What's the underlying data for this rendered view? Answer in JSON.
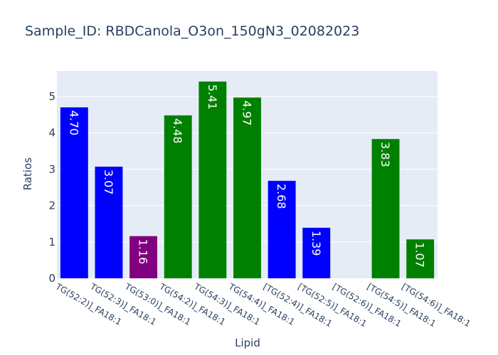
{
  "chart_data": {
    "type": "bar",
    "title": "Sample_ID: RBDCanola_O3on_150gN3_02082023",
    "xlabel": "Lipid",
    "ylabel": "Ratios",
    "ylim": [
      0,
      5.7
    ],
    "yticks": [
      0,
      1,
      2,
      3,
      4,
      5
    ],
    "grid": true,
    "categories": [
      "TG(52:2)]_FA18:1",
      "TG(52:3)]_FA18:1",
      "TG(53:0)]_FA18:1",
      "TG(54:2)]_FA18:1",
      "TG(54:3)]_FA18:1",
      "TG(54:4)]_FA18:1",
      "[TG(52:4)]_FA18:1",
      "[TG(52:5)]_FA18:1",
      "[TG(52:6)]_FA18:1",
      "[TG(54:5)]_FA18:1",
      "[TG(54:6)]_FA18:1"
    ],
    "values": [
      4.7,
      3.07,
      1.16,
      4.48,
      5.41,
      4.97,
      2.68,
      1.39,
      null,
      3.83,
      1.07
    ],
    "labels": [
      "4.70",
      "3.07",
      "1.16",
      "4.48",
      "5.41",
      "4.97",
      "2.68",
      "1.39",
      "",
      "3.83",
      "1.07"
    ],
    "colors": [
      "#0000ff",
      "#0000ff",
      "#800080",
      "#008000",
      "#008000",
      "#008000",
      "#0000ff",
      "#0000ff",
      "#008000",
      "#008000",
      "#008000"
    ],
    "plot_bg": "#e5ecf6",
    "grid_color": "#ffffff",
    "text_color": "#2a3f5f"
  }
}
